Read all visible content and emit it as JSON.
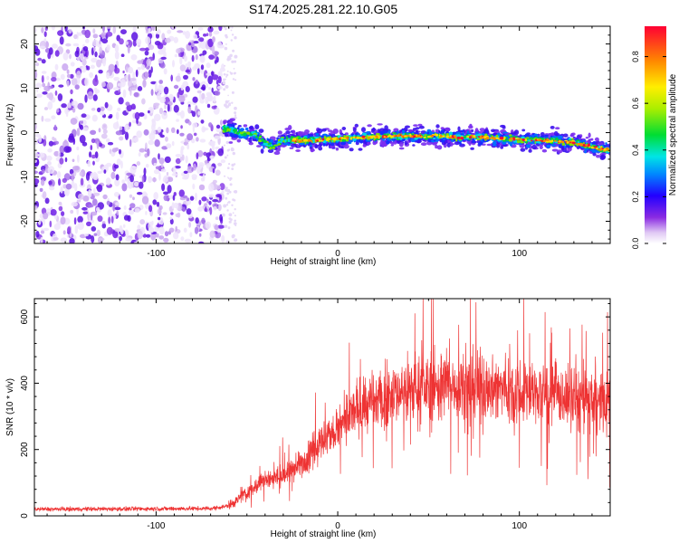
{
  "title": "S174.2025.281.22.10.G05",
  "chart_data": [
    {
      "type": "heatmap",
      "xlabel": "Height of straight line (km)",
      "ylabel": "Frequency (Hz)",
      "xlim": [
        -167,
        150
      ],
      "ylim": [
        -25,
        24
      ],
      "xticks": [
        -100,
        0,
        100
      ],
      "yticks": [
        -20,
        -10,
        0,
        10,
        20
      ],
      "noise_region_x": [
        -167,
        -63
      ],
      "signal_track": {
        "x": [
          -63,
          -55,
          -45,
          -40,
          -35,
          -30,
          -20,
          -10,
          0,
          10,
          20,
          30,
          40,
          50,
          60,
          70,
          80,
          90,
          100,
          110,
          120,
          130,
          140,
          150
        ],
        "freq": [
          1.0,
          0.0,
          -0.5,
          -2.5,
          -3.0,
          -1.5,
          -1.8,
          -1.6,
          -1.4,
          -1.2,
          -1.0,
          -0.8,
          -0.8,
          -0.8,
          -0.9,
          -1.0,
          -1.1,
          -1.3,
          -1.5,
          -1.7,
          -1.9,
          -2.2,
          -3.2,
          -4.0
        ]
      }
    },
    {
      "type": "line",
      "xlabel": "Height of straight line (km)",
      "ylabel": "SNR (10 * v/v)",
      "xlim": [
        -167,
        150
      ],
      "ylim": [
        0,
        655
      ],
      "xticks": [
        -100,
        0,
        100
      ],
      "yticks": [
        0,
        200,
        400,
        600
      ],
      "color": "#ee3333",
      "trend": {
        "x": [
          -167,
          -70,
          -60,
          -50,
          -40,
          -30,
          -20,
          -10,
          0,
          10,
          20,
          30,
          40,
          60,
          80,
          100,
          120,
          140,
          150
        ],
        "y": [
          20,
          22,
          30,
          70,
          110,
          120,
          160,
          220,
          260,
          320,
          340,
          370,
          380,
          395,
          390,
          380,
          360,
          350,
          340
        ]
      }
    }
  ],
  "colorbar": {
    "label": "Normalized spectral amplitude",
    "range": [
      0.0,
      0.93
    ],
    "ticks": [
      0.0,
      0.2,
      0.4,
      0.6,
      0.8
    ],
    "tick_labels": [
      "0.0",
      "0.2",
      "0.4",
      "0.6",
      "0.8"
    ]
  }
}
